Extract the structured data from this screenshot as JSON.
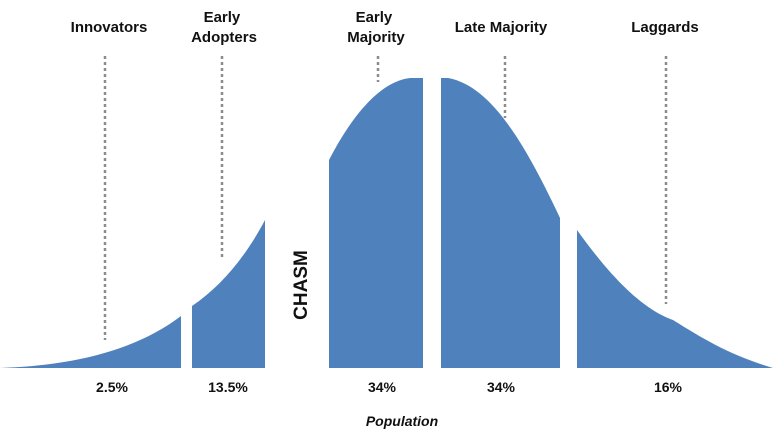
{
  "diagram": {
    "accent_color": "#4f81bd",
    "chasm_label": "CHASM",
    "axis_label": "Population",
    "segments": [
      {
        "label_lines": [
          "Innovators"
        ],
        "percent": "2.5%"
      },
      {
        "label_lines": [
          "Early",
          "Adopters"
        ],
        "percent": "13.5%"
      },
      {
        "label_lines": [
          "Early",
          "Majority"
        ],
        "percent": "34%"
      },
      {
        "label_lines": [
          "Late Majority"
        ],
        "percent": "34%"
      },
      {
        "label_lines": [
          "Laggards"
        ],
        "percent": "16%"
      }
    ]
  }
}
